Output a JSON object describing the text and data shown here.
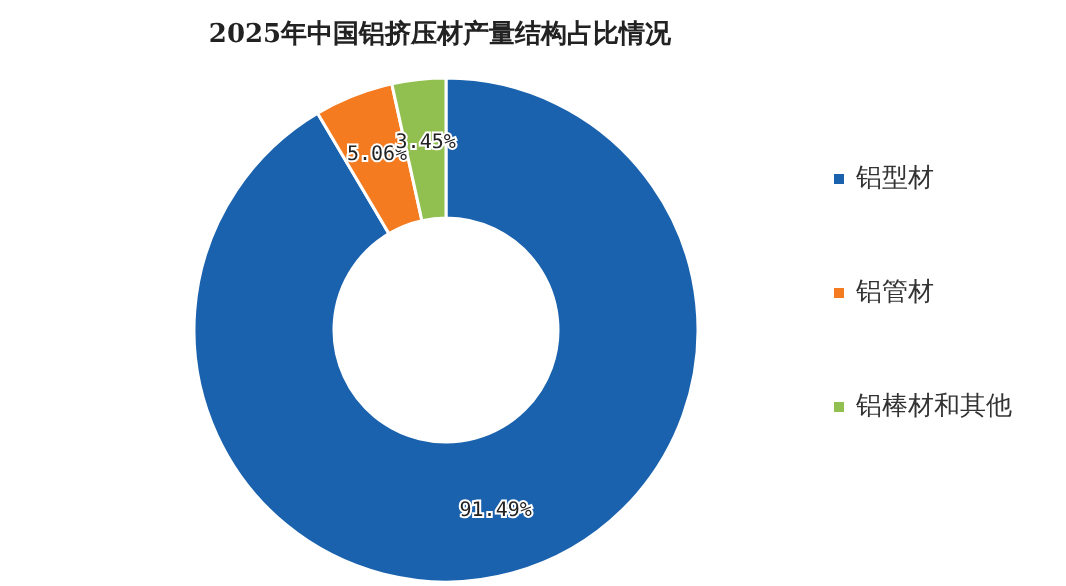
{
  "chart_data": {
    "type": "donut",
    "title": "2025年中国铝挤压材产量结构占比情况",
    "categories": [
      "铝型材",
      "铝管材",
      "铝棒材和其他"
    ],
    "values": [
      91.49,
      5.06,
      3.45
    ],
    "value_labels": [
      "91.49%",
      "5.06%",
      "3.45%"
    ],
    "colors": [
      "#1a62ae",
      "#f47b20",
      "#92c050"
    ],
    "legend": "right"
  }
}
